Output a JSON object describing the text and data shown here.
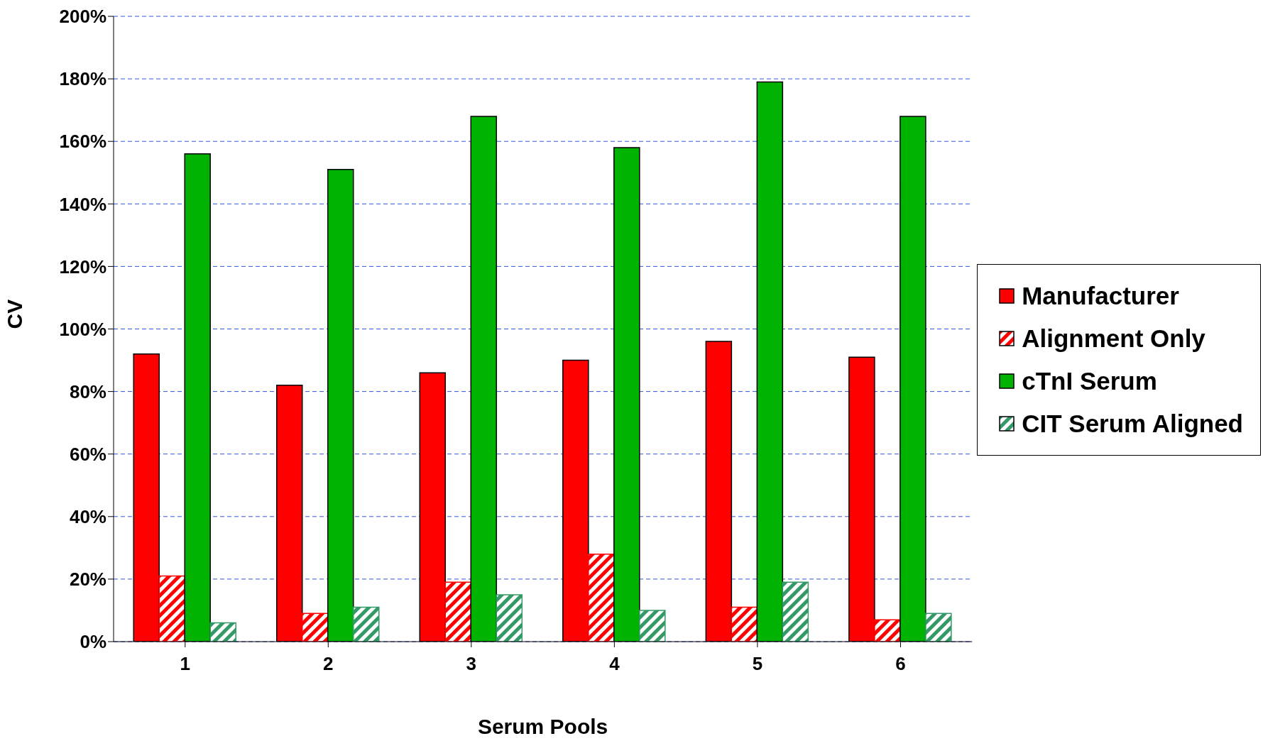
{
  "chart_data": {
    "type": "bar",
    "xlabel": "Serum Pools",
    "ylabel": "CV",
    "categories": [
      "1",
      "2",
      "3",
      "4",
      "5",
      "6"
    ],
    "series": [
      {
        "name": "Manufacturer",
        "color": "#ff0000",
        "values": [
          92,
          82,
          86,
          90,
          96,
          91
        ]
      },
      {
        "name": "Alignment Only",
        "color": "#ff0000",
        "values": [
          21,
          9,
          19,
          28,
          11,
          7
        ]
      },
      {
        "name": "cTnI Serum",
        "color": "#00b300",
        "values": [
          156,
          151,
          168,
          158,
          179,
          168
        ]
      },
      {
        "name": "CIT Serum Aligned",
        "color": "#339966",
        "values": [
          6,
          11,
          15,
          10,
          19,
          9
        ]
      }
    ],
    "ylim": [
      0,
      200
    ],
    "yticks": [
      {
        "value": 0,
        "label": "0%"
      },
      {
        "value": 20,
        "label": "20%"
      },
      {
        "value": 40,
        "label": "40%"
      },
      {
        "value": 60,
        "label": "60%"
      },
      {
        "value": 80,
        "label": "80%"
      },
      {
        "value": 100,
        "label": "100%"
      },
      {
        "value": 120,
        "label": "120%"
      },
      {
        "value": 140,
        "label": "140%"
      },
      {
        "value": 160,
        "label": "160%"
      },
      {
        "value": 180,
        "label": "180%"
      },
      {
        "value": 200,
        "label": "200%"
      }
    ],
    "grid": "y",
    "legend": "right"
  }
}
